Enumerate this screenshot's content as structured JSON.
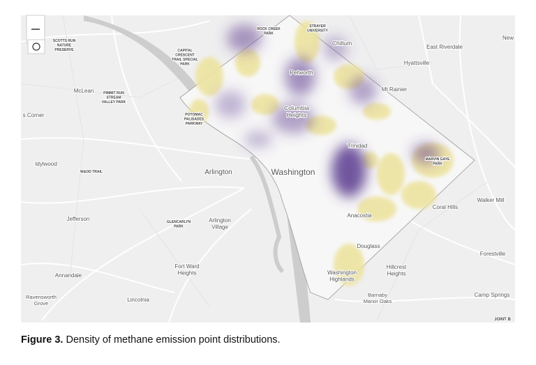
{
  "map": {
    "labels": [
      [
        "SCOTTS RUN",
        "NATURE",
        "PRESERVE"
      ],
      [
        "ROCK CREEK",
        "PARK"
      ],
      [
        "STRAYER",
        "UNIVERSITY"
      ],
      [
        "Chillum"
      ],
      [
        "New"
      ],
      [
        "East Riverdale"
      ],
      [
        "Hyattsville"
      ],
      [
        "CAPITAL",
        "CRESCENT",
        "TRAIL SPECIAL",
        "PARK"
      ],
      [
        "Petworth"
      ],
      [
        "Mt Rainier"
      ],
      [
        "McLean"
      ],
      [
        "PIMMIT RUN",
        "STREAM",
        "VALLEY PARK"
      ],
      [
        "Columbia",
        "Heights"
      ],
      [
        "POTOMAC",
        "PALISADES",
        "PARKWAY"
      ],
      [
        "s Corner"
      ],
      [
        "Trinidad"
      ],
      [
        "MARVIN GAYE",
        "PARK"
      ],
      [
        "Idylwood"
      ],
      [
        "W&OD TRAIL"
      ],
      [
        "Arlington"
      ],
      [
        "Washington"
      ],
      [
        "Walker Mill"
      ],
      [
        "Coral Hills"
      ],
      [
        "Jefferson"
      ],
      [
        "GLENCARLYN",
        "PARK"
      ],
      [
        "Arlington",
        "Village"
      ],
      [
        "Anacostia"
      ],
      [
        "Douglass"
      ],
      [
        "Forestville"
      ],
      [
        "Fort Ward",
        "Heights"
      ],
      [
        "Annandale"
      ],
      [
        "Hillcrest",
        "Heights"
      ],
      [
        "Washington",
        "Highlands"
      ],
      [
        "Ravensworth",
        "Grove"
      ],
      [
        "Lincolnia"
      ],
      [
        "Barnaby",
        "Manor Oaks"
      ],
      [
        "Camp Springs"
      ],
      [
        "JOINT B"
      ]
    ]
  },
  "caption": {
    "label": "Figure 3.",
    "text": "Density of methane emission point distributions."
  }
}
